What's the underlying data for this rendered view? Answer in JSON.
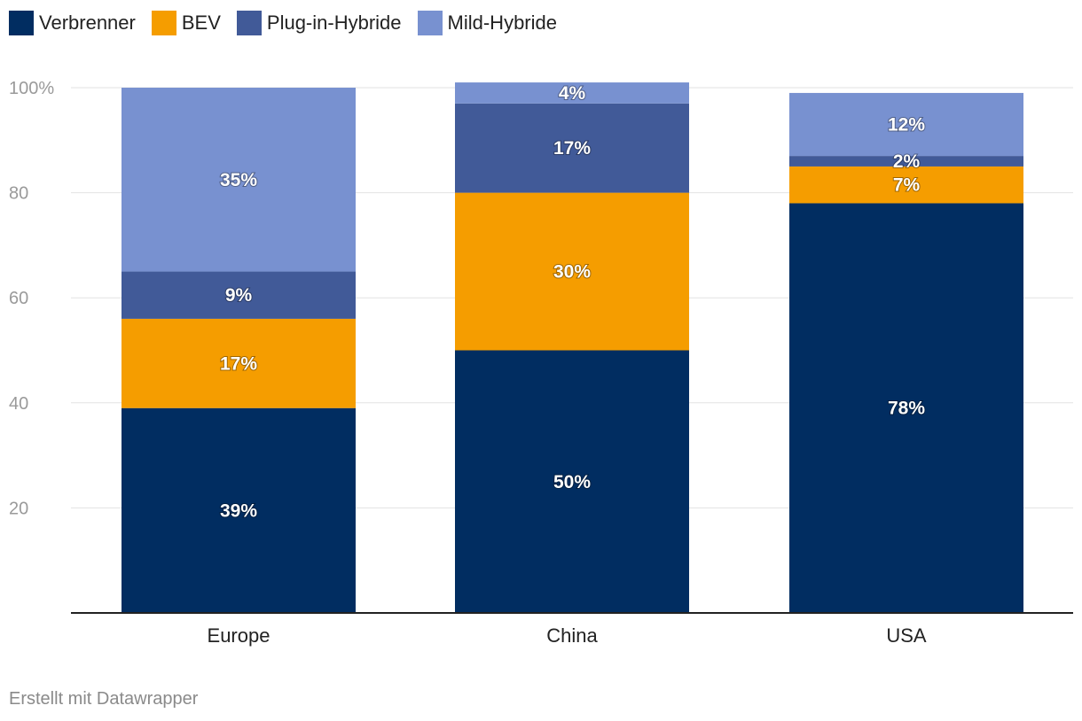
{
  "chart_data": {
    "type": "bar",
    "stacked": true,
    "categories": [
      "Europe",
      "China",
      "USA"
    ],
    "series": [
      {
        "name": "Verbrenner",
        "color": "#012d61",
        "values": [
          39,
          50,
          78
        ],
        "labels": [
          "39%",
          "50%",
          "78%"
        ]
      },
      {
        "name": "BEV",
        "color": "#f59d00",
        "values": [
          17,
          30,
          7
        ],
        "labels": [
          "17%",
          "30%",
          "7%"
        ]
      },
      {
        "name": "Plug-in-Hybride",
        "color": "#415a98",
        "values": [
          9,
          17,
          2
        ],
        "labels": [
          "9%",
          "17%",
          "2%"
        ]
      },
      {
        "name": "Mild-Hybride",
        "color": "#7891d0",
        "values": [
          35,
          4,
          12
        ],
        "labels": [
          "35%",
          "4%",
          "12%"
        ]
      }
    ],
    "yticks": [
      {
        "value": 20,
        "label": "20"
      },
      {
        "value": 40,
        "label": "40"
      },
      {
        "value": 60,
        "label": "60"
      },
      {
        "value": 80,
        "label": "80"
      },
      {
        "value": 100,
        "label": "100%"
      }
    ],
    "ylim": [
      0,
      100
    ],
    "grid": true,
    "legend_position": "top-left"
  },
  "footer": {
    "credit": "Erstellt mit Datawrapper"
  }
}
